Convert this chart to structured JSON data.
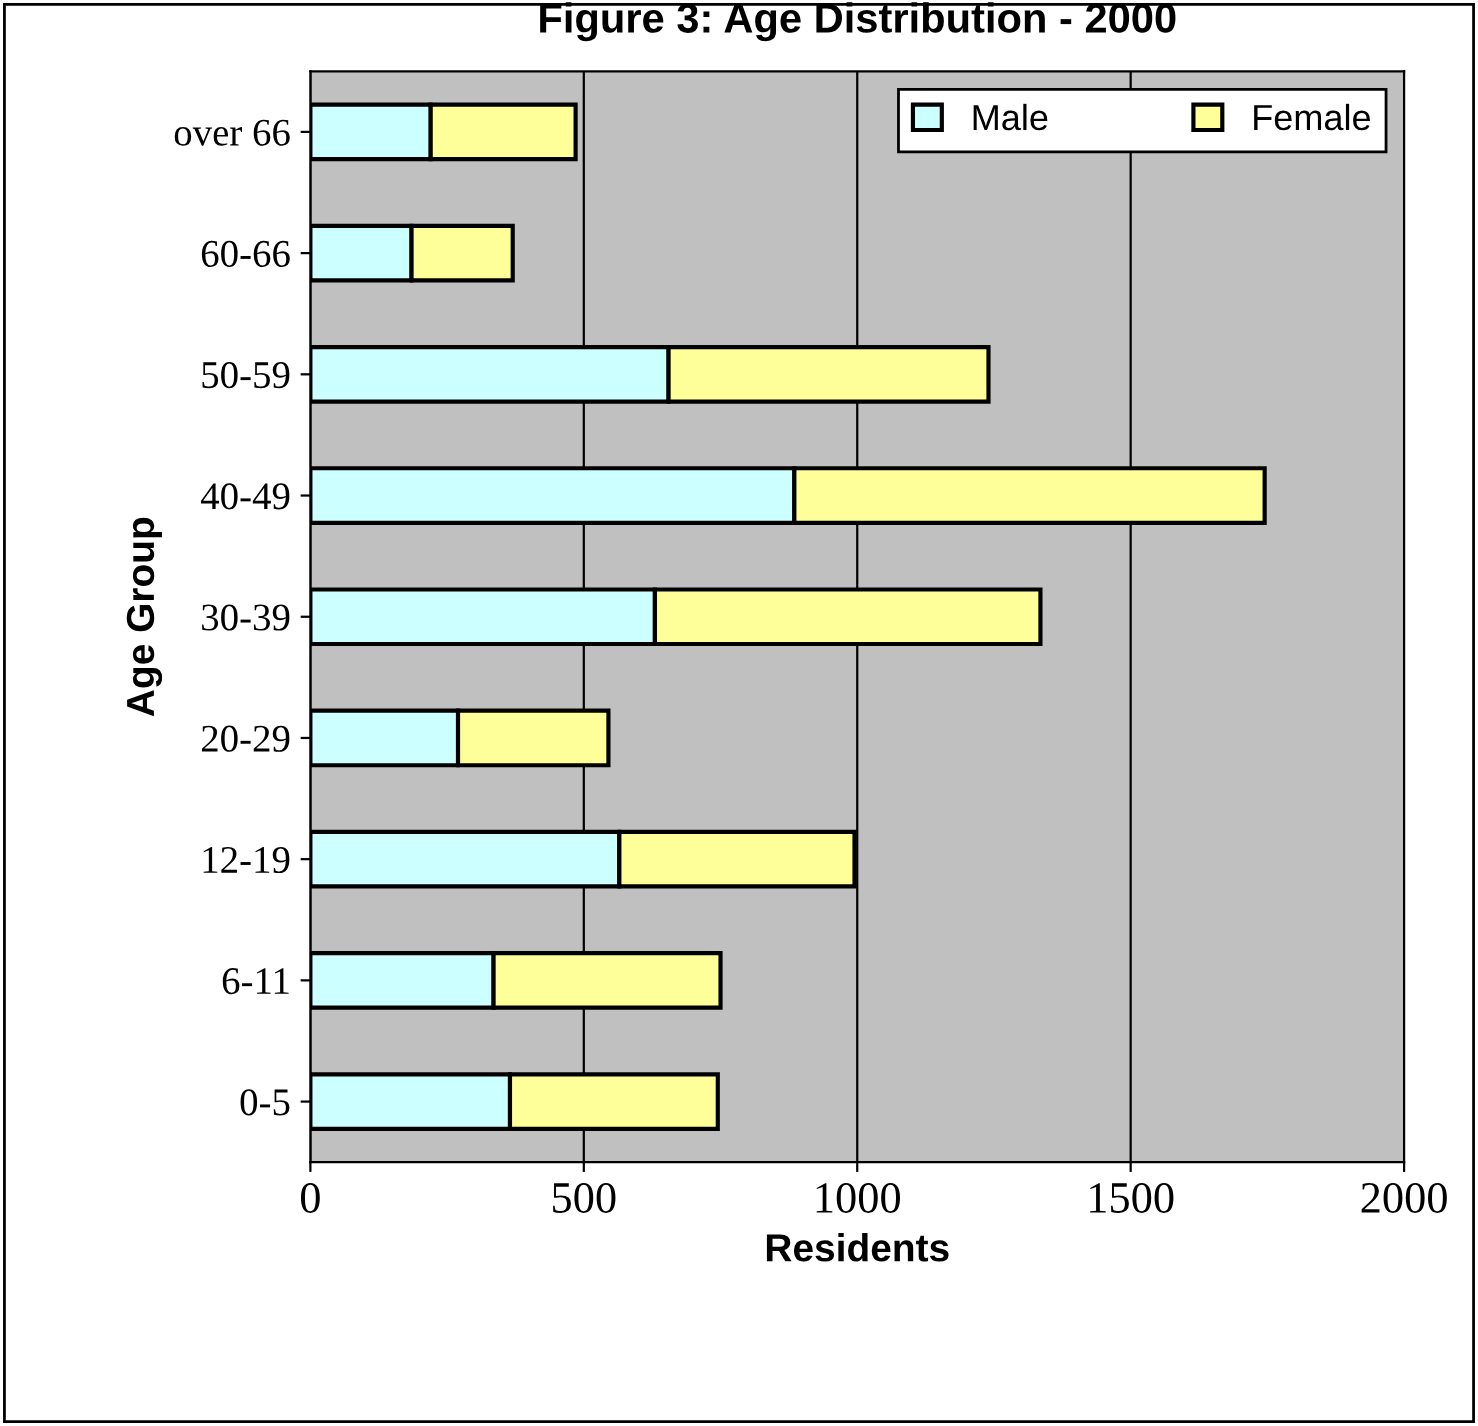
{
  "chart_data": {
    "type": "bar",
    "orientation": "horizontal",
    "stacked": true,
    "title": "Figure 3: Age Distribution - 2000",
    "xlabel": "Residents",
    "ylabel": "Age Group",
    "categories": [
      "over 66",
      "60-66",
      "50-59",
      "40-49",
      "30-39",
      "20-29",
      "12-19",
      "6-11",
      "0-5"
    ],
    "series": [
      {
        "name": "Male",
        "color": "#ccffff",
        "values": [
          220,
          185,
          655,
          885,
          630,
          270,
          565,
          335,
          365
        ]
      },
      {
        "name": "Female",
        "color": "#ffff99",
        "values": [
          265,
          185,
          585,
          860,
          705,
          275,
          430,
          415,
          380
        ]
      }
    ],
    "xlim": [
      0,
      2000
    ],
    "xticks": [
      0,
      500,
      1000,
      1500,
      2000
    ],
    "grid": "x",
    "legend": "top right"
  }
}
